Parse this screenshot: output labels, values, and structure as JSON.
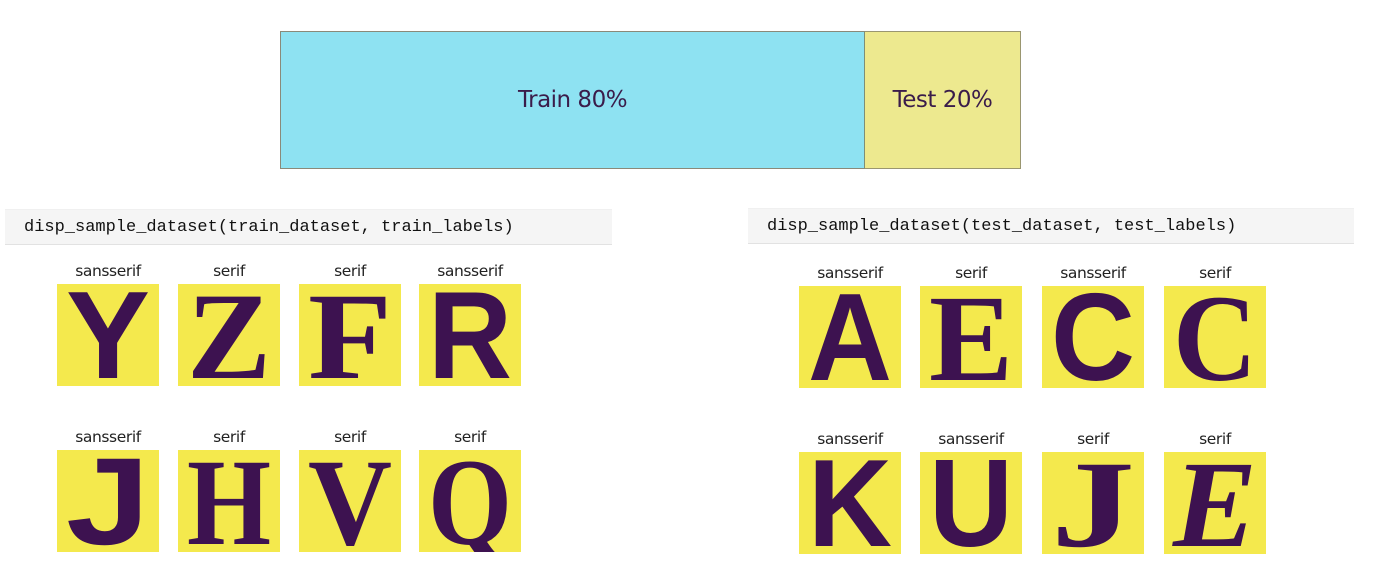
{
  "split_bar": {
    "train_label": "Train 80%",
    "test_label": "Test 20%",
    "train_color": "#8ee2f2",
    "test_color": "#ede98f"
  },
  "train": {
    "code": "disp_sample_dataset(train_dataset, train_labels)",
    "samples": [
      {
        "label": "sansserif",
        "glyph": "Y",
        "style": "sans"
      },
      {
        "label": "serif",
        "glyph": "Z",
        "style": "serif"
      },
      {
        "label": "serif",
        "glyph": "F",
        "style": "serif"
      },
      {
        "label": "sansserif",
        "glyph": "R",
        "style": "sans"
      },
      {
        "label": "sansserif",
        "glyph": "J",
        "style": "sans"
      },
      {
        "label": "serif",
        "glyph": "H",
        "style": "serif"
      },
      {
        "label": "serif",
        "glyph": "V",
        "style": "serif"
      },
      {
        "label": "serif",
        "glyph": "Q",
        "style": "serif"
      }
    ]
  },
  "test": {
    "code": "disp_sample_dataset(test_dataset, test_labels)",
    "samples": [
      {
        "label": "sansserif",
        "glyph": "A",
        "style": "sans"
      },
      {
        "label": "serif",
        "glyph": "E",
        "style": "serif"
      },
      {
        "label": "sansserif",
        "glyph": "C",
        "style": "sans"
      },
      {
        "label": "serif",
        "glyph": "C",
        "style": "serif"
      },
      {
        "label": "sansserif",
        "glyph": "K",
        "style": "sans"
      },
      {
        "label": "sansserif",
        "glyph": "U",
        "style": "sans"
      },
      {
        "label": "serif",
        "glyph": "J",
        "style": "serif"
      },
      {
        "label": "serif",
        "glyph": "E",
        "style": "serif-italic"
      }
    ]
  },
  "colors": {
    "tile_background": "#f4e94d",
    "glyph": "#3d1250"
  }
}
